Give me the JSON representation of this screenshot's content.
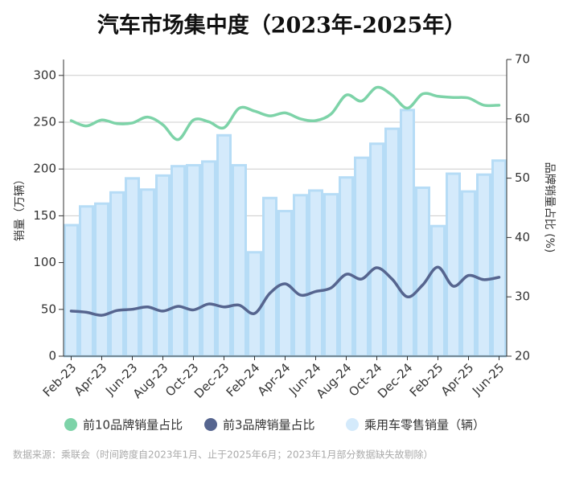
{
  "chart_data": {
    "type": "bar",
    "title": "汽车市场集中度（2023年-2025年）",
    "y_label": "销量（万辆）",
    "y2_label": "品牌销量占比 (%)",
    "footnote": "数据来源：乘联会（时间跨度自2023年1月、止于2025年6月；2023年1月部分数据缺失故剔除）",
    "categories": [
      "Feb-23",
      null,
      "Apr-23",
      null,
      "Jun-23",
      null,
      "Aug-23",
      null,
      "Oct-23",
      null,
      "Dec-23",
      null,
      "Feb-24",
      null,
      "Apr-24",
      null,
      "Jun-24",
      null,
      "Aug-24",
      null,
      "Oct-24",
      null,
      "Dec-24",
      null,
      "Feb-25",
      null,
      "Apr-25",
      null,
      "Jun-25"
    ],
    "series": [
      {
        "name": "前10品牌销量占比",
        "type": "line",
        "axis": "y2",
        "color": "#7dd3a8",
        "values": [
          59.7,
          58.8,
          59.8,
          59.2,
          59.3,
          60.3,
          59.0,
          56.5,
          59.8,
          59.5,
          58.5,
          61.8,
          61.3,
          60.5,
          61.0,
          60.0,
          59.7,
          60.8,
          64.0,
          63.0,
          65.3,
          64.0,
          61.8,
          64.2,
          63.8,
          63.6,
          63.5,
          62.3,
          62.3
        ]
      },
      {
        "name": "前3品牌销量占比",
        "type": "line",
        "axis": "y2",
        "color": "#56658f",
        "values": [
          27.6,
          27.4,
          26.9,
          27.7,
          27.9,
          28.3,
          27.6,
          28.4,
          27.8,
          28.8,
          28.3,
          28.6,
          27.2,
          30.6,
          32.2,
          30.3,
          30.9,
          31.5,
          33.8,
          33.0,
          34.9,
          33.0,
          30.0,
          32.0,
          35.0,
          31.8,
          33.6,
          32.9,
          33.3
        ]
      },
      {
        "name": "乘用车零售销量（辆）",
        "type": "bar",
        "axis": "y",
        "color": "#d4eafb",
        "values": [
          140,
          160,
          163,
          175,
          190,
          178,
          193,
          203,
          204,
          208,
          236,
          204,
          111,
          169,
          155,
          172,
          177,
          173,
          191,
          212,
          227,
          243,
          263,
          180,
          139,
          195,
          176,
          194,
          209
        ]
      }
    ],
    "ylim": [
      0,
      317
    ],
    "yticks": [
      0,
      50,
      100,
      150,
      200,
      250,
      300
    ],
    "y2lim": [
      20,
      70
    ],
    "y2ticks": [
      20,
      30,
      40,
      50,
      60,
      70
    ],
    "grid": true
  }
}
